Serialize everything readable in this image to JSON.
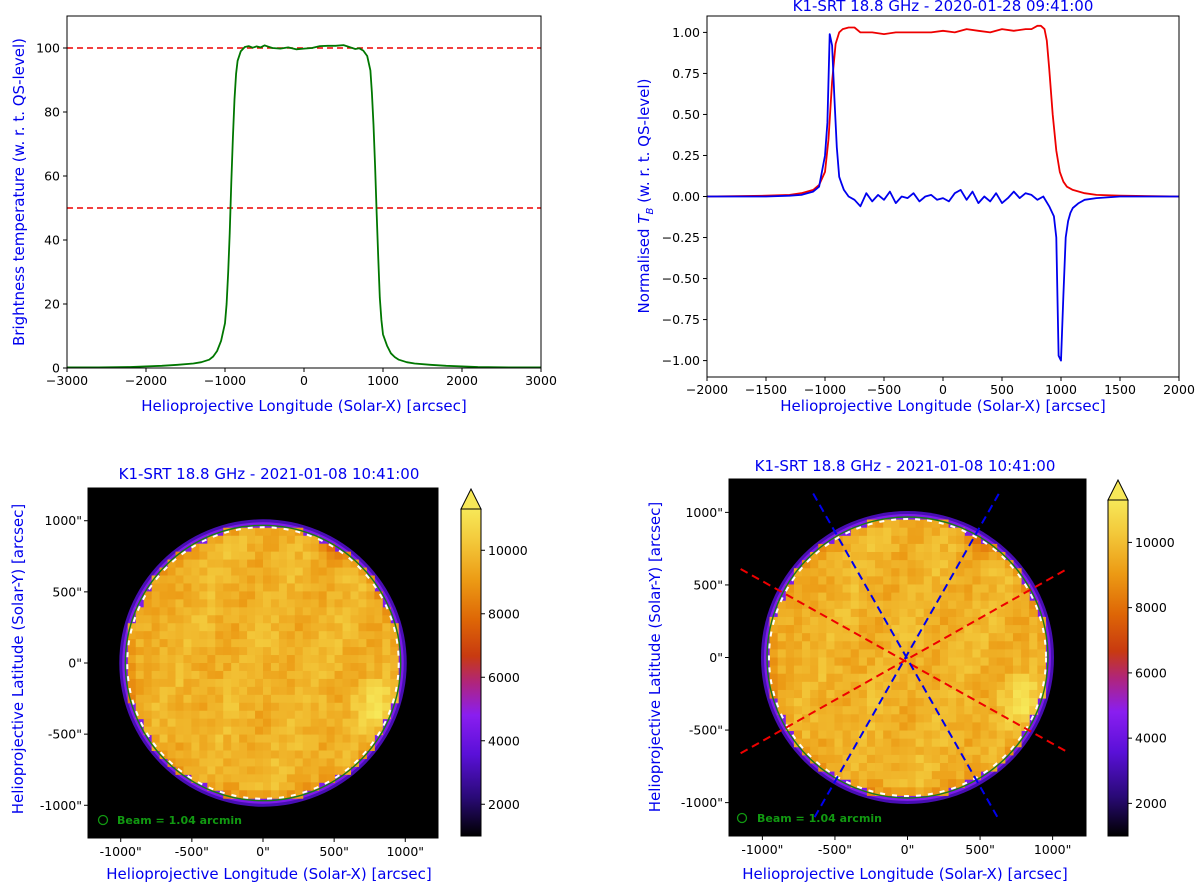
{
  "chart_data": [
    {
      "id": "tl",
      "type": "line",
      "title": "",
      "xlabel": "Helioprojective Longitude (Solar-X) [arcsec]",
      "ylabel": "Brightness temperature (w. r. t. QS-level)",
      "xlim": [
        -3000,
        3000
      ],
      "ylim": [
        0,
        110
      ],
      "xticks": [
        -3000,
        -2000,
        -1000,
        0,
        1000,
        2000,
        3000
      ],
      "xtick_labels": [
        "−3000",
        "−2000",
        "−1000",
        "0",
        "1000",
        "2000",
        "3000"
      ],
      "yticks": [
        0,
        20,
        40,
        60,
        80,
        100
      ],
      "ytick_labels": [
        "0",
        "20",
        "40",
        "60",
        "80",
        "100"
      ],
      "hlines": [
        {
          "y": 100,
          "color": "#ee0000",
          "style": "dashed"
        },
        {
          "y": 50,
          "color": "#ee0000",
          "style": "dashed"
        }
      ],
      "series": [
        {
          "name": "profile",
          "color": "#007700",
          "x": [
            -3000,
            -2600,
            -2200,
            -2000,
            -1800,
            -1600,
            -1400,
            -1300,
            -1200,
            -1150,
            -1100,
            -1050,
            -1000,
            -980,
            -960,
            -940,
            -920,
            -900,
            -880,
            -860,
            -840,
            -800,
            -750,
            -700,
            -650,
            -600,
            -550,
            -500,
            -450,
            -400,
            -300,
            -200,
            -100,
            0,
            100,
            200,
            300,
            400,
            500,
            550,
            600,
            650,
            700,
            750,
            800,
            840,
            860,
            880,
            900,
            920,
            940,
            960,
            980,
            1000,
            1050,
            1100,
            1150,
            1200,
            1300,
            1400,
            1600,
            1800,
            2000,
            2200,
            2600,
            3000
          ],
          "y": [
            0.2,
            0.2,
            0.3,
            0.5,
            0.7,
            1.0,
            1.4,
            1.8,
            2.6,
            3.6,
            5.3,
            8.5,
            14,
            20,
            30,
            42,
            58,
            72,
            84,
            92,
            96,
            99,
            100.3,
            100.6,
            100.1,
            100.5,
            100.2,
            100.8,
            100.4,
            100.0,
            99.8,
            100.2,
            99.6,
            99.8,
            100.0,
            100.6,
            100.7,
            100.7,
            100.9,
            100.5,
            100.1,
            99.7,
            99.9,
            99.2,
            97.5,
            93,
            86,
            76,
            63,
            48,
            34,
            22,
            15,
            10.5,
            7,
            4.6,
            3.4,
            2.6,
            1.8,
            1.4,
            1.0,
            0.7,
            0.5,
            0.3,
            0.2,
            0.2
          ]
        }
      ]
    },
    {
      "id": "tr",
      "type": "line",
      "title": "K1-SRT 18.8 GHz - 2020-01-28 09:41:00",
      "xlabel": "Helioprojective Longitude (Solar-X) [arcsec]",
      "ylabel_prefix": "Normalised ",
      "ylabel_symbol": "T",
      "ylabel_sub": "B",
      "ylabel_suffix": " (w. r. t. QS-level)",
      "xlim": [
        -2000,
        2000
      ],
      "ylim": [
        -1.1,
        1.1
      ],
      "xticks": [
        -2000,
        -1500,
        -1000,
        -500,
        0,
        500,
        1000,
        1500,
        2000
      ],
      "xtick_labels": [
        "−2000",
        "−1500",
        "−1000",
        "−500",
        "0",
        "500",
        "1000",
        "1500",
        "2000"
      ],
      "yticks": [
        -1.0,
        -0.75,
        -0.5,
        -0.25,
        0.0,
        0.25,
        0.5,
        0.75,
        1.0
      ],
      "ytick_labels": [
        "−1.00",
        "−0.75",
        "−0.50",
        "−0.25",
        "0.00",
        "0.25",
        "0.50",
        "0.75",
        "1.00"
      ],
      "series": [
        {
          "name": "red",
          "color": "#ee0000",
          "x": [
            -2000,
            -1500,
            -1300,
            -1200,
            -1100,
            -1050,
            -1000,
            -970,
            -940,
            -910,
            -880,
            -850,
            -800,
            -750,
            -700,
            -600,
            -500,
            -400,
            -300,
            -200,
            -100,
            0,
            100,
            200,
            300,
            400,
            500,
            600,
            700,
            750,
            800,
            830,
            860,
            880,
            900,
            930,
            960,
            990,
            1020,
            1050,
            1100,
            1200,
            1300,
            1500,
            2000
          ],
          "y": [
            0.0,
            0.005,
            0.01,
            0.02,
            0.04,
            0.07,
            0.15,
            0.35,
            0.7,
            0.93,
            1.0,
            1.02,
            1.03,
            1.03,
            1.0,
            1.0,
            0.99,
            1.0,
            1.0,
            1.0,
            1.0,
            1.01,
            1.0,
            1.02,
            1.01,
            1.0,
            1.02,
            1.01,
            1.02,
            1.02,
            1.04,
            1.04,
            1.02,
            0.95,
            0.78,
            0.5,
            0.28,
            0.15,
            0.09,
            0.06,
            0.04,
            0.02,
            0.01,
            0.005,
            0.0
          ]
        },
        {
          "name": "blue",
          "color": "#0000ee",
          "x": [
            -2000,
            -1500,
            -1300,
            -1200,
            -1100,
            -1050,
            -1000,
            -980,
            -960,
            -940,
            -920,
            -900,
            -880,
            -860,
            -840,
            -800,
            -750,
            -700,
            -650,
            -600,
            -550,
            -500,
            -450,
            -400,
            -350,
            -300,
            -250,
            -200,
            -150,
            -100,
            -50,
            0,
            50,
            100,
            150,
            200,
            250,
            300,
            350,
            400,
            450,
            500,
            550,
            600,
            650,
            700,
            750,
            800,
            850,
            900,
            940,
            960,
            980,
            1000,
            1020,
            1040,
            1060,
            1080,
            1100,
            1150,
            1200,
            1300,
            1500,
            2000
          ],
          "y": [
            0.0,
            0.0,
            0.005,
            0.01,
            0.03,
            0.06,
            0.25,
            0.45,
            0.99,
            0.92,
            0.6,
            0.3,
            0.12,
            0.08,
            0.04,
            0.0,
            -0.02,
            -0.06,
            0.02,
            -0.03,
            0.01,
            -0.02,
            0.03,
            -0.04,
            0.0,
            -0.01,
            0.02,
            -0.03,
            0.0,
            0.01,
            -0.02,
            -0.01,
            -0.03,
            0.02,
            0.04,
            -0.02,
            0.03,
            -0.04,
            0.0,
            -0.03,
            0.02,
            -0.04,
            -0.01,
            0.03,
            -0.01,
            0.02,
            0.01,
            -0.02,
            0.0,
            -0.06,
            -0.12,
            -0.25,
            -0.97,
            -1.0,
            -0.6,
            -0.25,
            -0.15,
            -0.1,
            -0.07,
            -0.04,
            -0.02,
            -0.01,
            0.0,
            0.0
          ]
        }
      ]
    },
    {
      "id": "bl",
      "type": "heatmap",
      "title": "K1-SRT 18.8 GHz - 2021-01-08 10:41:00",
      "xlabel": "Helioprojective Longitude (Solar-X) [arcsec]",
      "ylabel": "Helioprojective Latitude (Solar-Y) [arcsec]",
      "xlim": [
        -1230,
        1230
      ],
      "ylim": [
        -1230,
        1230
      ],
      "xticks": [
        -1000,
        -500,
        0,
        500,
        1000
      ],
      "xtick_labels": [
        "-1000\"",
        "-500\"",
        "0\"",
        "500\"",
        "1000\""
      ],
      "yticks": [
        -1000,
        -500,
        0,
        500,
        1000
      ],
      "ytick_labels": [
        "-1000\"",
        "-500\"",
        "0\"",
        "500\"",
        "1000\""
      ],
      "solar_radius": 975,
      "disk_center": [
        0,
        0
      ],
      "beam_label": "Beam = 1.04 arcmin",
      "colorbar": {
        "min": 1000,
        "max": 11300,
        "ticks": [
          2000,
          4000,
          6000,
          8000,
          10000
        ],
        "tick_labels": [
          "2000",
          "4000",
          "6000",
          "8000",
          "10000"
        ],
        "cmap": "gnuplot2-like",
        "extend": "max"
      },
      "overlay_lines": []
    },
    {
      "id": "br",
      "type": "heatmap",
      "title": "K1-SRT 18.8 GHz - 2021-01-08 10:41:00",
      "xlabel": "Helioprojective Longitude (Solar-X) [arcsec]",
      "ylabel": "Helioprojective Latitude (Solar-Y) [arcsec]",
      "xlim": [
        -1230,
        1230
      ],
      "ylim": [
        -1230,
        1230
      ],
      "xticks": [
        -1000,
        -500,
        0,
        500,
        1000
      ],
      "xtick_labels": [
        "-1000\"",
        "-500\"",
        "0\"",
        "500\"",
        "1000\""
      ],
      "yticks": [
        -1000,
        -500,
        0,
        500,
        1000
      ],
      "ytick_labels": [
        "-1000\"",
        "-500\"",
        "0\"",
        "500\"",
        "1000\""
      ],
      "solar_radius": 975,
      "disk_center": [
        0,
        0
      ],
      "beam_label": "Beam = 1.04 arcmin",
      "colorbar": {
        "min": 1000,
        "max": 11300,
        "ticks": [
          2000,
          4000,
          6000,
          8000,
          10000
        ],
        "tick_labels": [
          "2000",
          "4000",
          "6000",
          "8000",
          "10000"
        ],
        "cmap": "gnuplot2-like",
        "extend": "max"
      },
      "overlay_lines": [
        {
          "color": "#ee0000",
          "style": "dashed",
          "x": [
            -1150,
            1100
          ],
          "y": [
            610,
            -650
          ]
        },
        {
          "color": "#ee0000",
          "style": "dashed",
          "x": [
            -1150,
            1100
          ],
          "y": [
            -660,
            610
          ]
        },
        {
          "color": "#0000ee",
          "style": "dashed",
          "x": [
            -650,
            620
          ],
          "y": [
            1130,
            -1100
          ]
        },
        {
          "color": "#0000ee",
          "style": "dashed",
          "x": [
            -640,
            630
          ],
          "y": [
            -1100,
            1130
          ]
        }
      ]
    }
  ]
}
